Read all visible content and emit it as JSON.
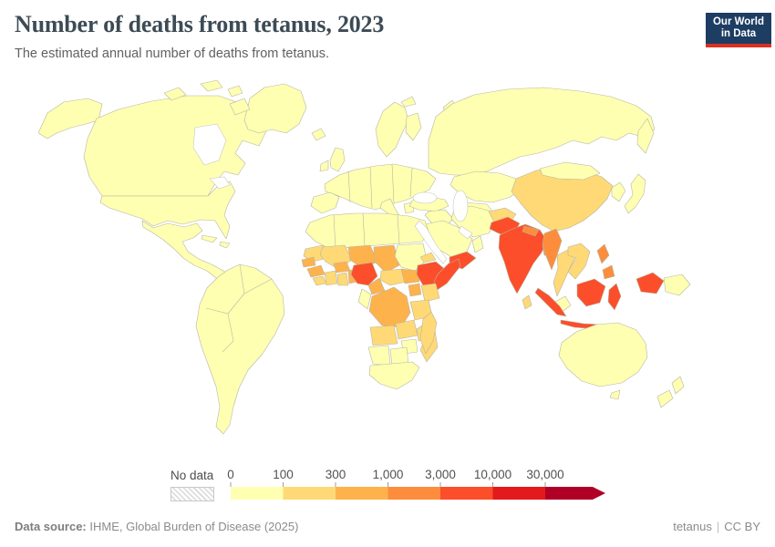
{
  "header": {
    "title": "Number of deaths from tetanus, 2023",
    "subtitle": "The estimated annual number of deaths from tetanus.",
    "logo": {
      "line1": "Our World",
      "line2": "in Data",
      "bg": "#1d3d63",
      "accent": "#dc3022"
    }
  },
  "legend": {
    "no_data_label": "No data"
  },
  "chart_data": {
    "type": "choropleth",
    "title": "Number of deaths from tetanus",
    "year": "2023",
    "metric": "Estimated annual number of deaths from tetanus",
    "legend_position": "bottom",
    "scale_ticks": [
      "0",
      "100",
      "300",
      "1,000",
      "3,000",
      "10,000",
      "30,000"
    ],
    "bins": [
      {
        "range": "0-100",
        "color": "#ffffb2"
      },
      {
        "range": "100-300",
        "color": "#fed976"
      },
      {
        "range": "300-1,000",
        "color": "#feb24c"
      },
      {
        "range": "1,000-3,000",
        "color": "#fd8d3c"
      },
      {
        "range": "3,000-10,000",
        "color": "#fc4e2a"
      },
      {
        "range": "10,000-30,000",
        "color": "#e31a1c"
      },
      {
        "range": "30,000+",
        "color": "#b10026"
      }
    ],
    "no_data_color": "#ffffff",
    "default_bin": "0-100",
    "countries": {
      "India": "3,000-10,000",
      "Pakistan": "3,000-10,000",
      "Indonesia": "3,000-10,000",
      "Nigeria": "3,000-10,000",
      "Ethiopia": "3,000-10,000",
      "Somalia": "3,000-10,000",
      "Yemen": "3,000-10,000",
      "Myanmar": "1,000-3,000",
      "Bangladesh": "1,000-3,000",
      "Nepal": "1,000-3,000",
      "Philippines": "1,000-3,000",
      "Niger": "300-1,000",
      "Chad": "300-1,000",
      "Burkina Faso": "300-1,000",
      "Guinea": "300-1,000",
      "Senegal": "300-1,000",
      "Benin": "300-1,000",
      "Cameroon": "300-1,000",
      "Democratic Republic of Congo": "300-1,000",
      "Uganda": "300-1,000",
      "South Sudan": "300-1,000",
      "China": "100-300",
      "Afghanistan": "100-300",
      "Thailand": "100-300",
      "Vietnam": "100-300",
      "Sri Lanka": "100-300",
      "Mauritania": "100-300",
      "Mali": "100-300",
      "Ghana": "100-300",
      "Cote d'Ivoire": "100-300",
      "Sierra Leone": "100-300",
      "Central African Republic": "100-300",
      "Eritrea": "100-300",
      "Kenya": "100-300",
      "Tanzania": "100-300",
      "Angola": "100-300",
      "Zambia": "100-300",
      "Malawi": "100-300",
      "Mozambique": "100-300",
      "Madagascar": "100-300",
      "United States": "0-100",
      "Canada": "0-100",
      "Mexico": "0-100",
      "Greenland": "0-100",
      "Cuba": "0-100",
      "Haiti": "0-100",
      "Iceland": "0-100",
      "United Kingdom": "0-100",
      "Ireland": "0-100",
      "Norway": "0-100",
      "Finland": "0-100",
      "Russia": "0-100",
      "Kazakhstan": "0-100",
      "Uzbekistan": "0-100",
      "Turkey": "0-100",
      "Iraq": "0-100",
      "Iran": "0-100",
      "Saudi Arabia": "0-100",
      "Oman": "0-100",
      "Mongolia": "0-100",
      "South Korea": "0-100",
      "Japan": "0-100",
      "Malaysia": "0-100",
      "Papua New Guinea": "0-100",
      "Australia": "0-100",
      "New Zealand": "0-100",
      "Algeria": "0-100",
      "Sudan": "0-100",
      "Gabon": "0-100",
      "Zimbabwe": "0-100",
      "Namibia": "0-100",
      "Botswana": "0-100",
      "South Africa": "0-100"
    }
  },
  "footer": {
    "source_label": "Data source:",
    "source_text": "IHME, Global Burden of Disease (2025)",
    "link_text": "tetanus",
    "separator": "|",
    "license_text": "CC BY"
  }
}
